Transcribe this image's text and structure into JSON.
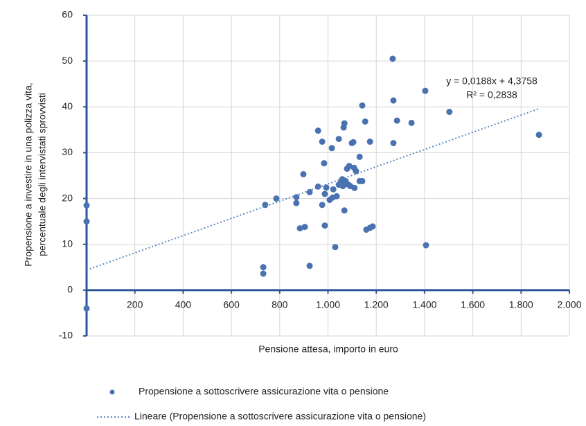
{
  "chart_data": {
    "type": "scatter",
    "xlabel": "Pensione attesa, importo in euro",
    "ylabel": [
      "Propensione a investire in una polizza vita,",
      "percentuale degli intervistati sprovvisti"
    ],
    "xlim": [
      0,
      2000
    ],
    "xticks": [
      200,
      400,
      600,
      800,
      {
        "value": 1000,
        "label": "1.000"
      },
      {
        "value": 1200,
        "label": "1.200"
      },
      {
        "value": 1400,
        "label": "1.400"
      },
      {
        "value": 1600,
        "label": "1.600"
      },
      {
        "value": 1800,
        "label": "1.800"
      },
      {
        "value": 2000,
        "label": "2.000"
      }
    ],
    "ylim": [
      -10,
      60
    ],
    "yticks": [
      -10,
      0,
      10,
      20,
      30,
      40,
      50,
      60
    ],
    "grid": true,
    "axis_color": "#2f5597",
    "annotations": [
      "y = 0,0188x + 4,3758",
      "R² = 0,2838"
    ],
    "series": [
      {
        "name": "Propensione a sottoscrivere assicurazione vita o pensione",
        "color": "#4a72b0",
        "kind": "points",
        "x": [
          0,
          0,
          0,
          732,
          732,
          740,
          786,
          869,
          869,
          884,
          904,
          898,
          924,
          924,
          959,
          959,
          976,
          984,
          987,
          976,
          987,
          993,
          1007,
          1016,
          1019,
          1022,
          1030,
          1036,
          1045,
          1045,
          1053,
          1059,
          1062,
          1065,
          1068,
          1068,
          1073,
          1079,
          1085,
          1088,
          1093,
          1099,
          1105,
          1108,
          1110,
          1116,
          1131,
          1131,
          1142,
          1142,
          1154,
          1159,
          1174,
          1174,
          1185,
          1268,
          1271,
          1271,
          1286,
          1346,
          1403,
          1406,
          1503,
          1874
        ],
        "values": [
          18.5,
          15,
          -4,
          5,
          3.6,
          18.6,
          20,
          20.3,
          19,
          13.5,
          13.8,
          25.3,
          21.4,
          5.3,
          22.6,
          34.8,
          32.4,
          27.7,
          14.1,
          18.6,
          21,
          22.4,
          19.7,
          31,
          20.2,
          22,
          9.4,
          20.5,
          23,
          33,
          23.6,
          24.2,
          22.7,
          35.5,
          36.4,
          17.4,
          23.8,
          26.5,
          23,
          27.1,
          22.7,
          32.1,
          32.3,
          26.7,
          22.3,
          26,
          23.8,
          29.1,
          23.8,
          40.3,
          36.8,
          13.2,
          13.6,
          32.4,
          13.9,
          50.5,
          41.4,
          32.1,
          37,
          36.5,
          43.5,
          9.8,
          38.9,
          33.9
        ]
      },
      {
        "name": "Lineare (Propensione a sottoscrivere assicurazione vita o pensione)",
        "color": "#5b87c0",
        "kind": "trend",
        "x": [
          0,
          1874
        ],
        "values": [
          4.38,
          39.61
        ]
      }
    ]
  }
}
